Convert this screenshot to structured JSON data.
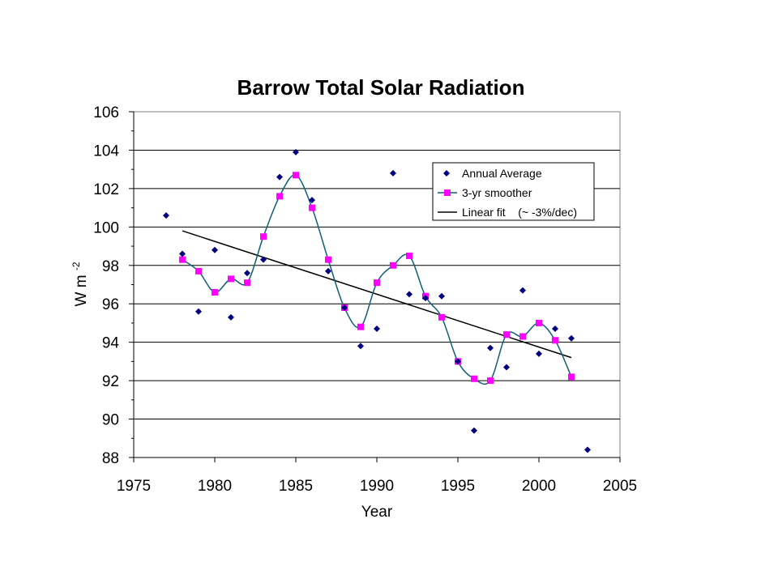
{
  "chart_data": {
    "type": "scatter",
    "title": "Barrow Total Solar Radiation",
    "xlabel": "Year",
    "ylabel": "W m",
    "ylabel_superscript": "-2",
    "xlim": [
      1975,
      2005
    ],
    "ylim": [
      88,
      106
    ],
    "x_ticks": [
      "1975",
      "1980",
      "1985",
      "1990",
      "1995",
      "2000",
      "2005"
    ],
    "y_ticks": [
      "88",
      "90",
      "92",
      "94",
      "96",
      "98",
      "100",
      "102",
      "104",
      "106"
    ],
    "grid": "horizontal",
    "legend_position": "top-right",
    "series": [
      {
        "name": "Annual Average",
        "style": "markers",
        "marker": "diamond",
        "color": "#000080",
        "x": [
          1977,
          1978,
          1979,
          1980,
          1981,
          1982,
          1983,
          1984,
          1985,
          1986,
          1987,
          1988,
          1989,
          1990,
          1991,
          1992,
          1993,
          1994,
          1995,
          1996,
          1997,
          1998,
          1999,
          2000,
          2001,
          2002,
          2003
        ],
        "y": [
          100.6,
          98.6,
          95.6,
          98.8,
          95.3,
          97.6,
          98.3,
          102.6,
          103.9,
          101.4,
          97.7,
          95.8,
          93.8,
          94.7,
          102.8,
          96.5,
          96.3,
          96.4,
          93.0,
          89.4,
          93.7,
          92.7,
          96.7,
          93.4,
          94.7,
          94.2,
          88.4
        ]
      },
      {
        "name": "3-yr smoother",
        "style": "line-markers",
        "marker": "square",
        "color": "#ff00ff",
        "line_color": "#0f5f7a",
        "x": [
          1978,
          1979,
          1980,
          1981,
          1982,
          1983,
          1984,
          1985,
          1986,
          1987,
          1988,
          1989,
          1990,
          1991,
          1992,
          1993,
          1994,
          1995,
          1996,
          1997,
          1998,
          1999,
          2000,
          2001,
          2002
        ],
        "y": [
          98.3,
          97.7,
          96.6,
          97.3,
          97.1,
          99.5,
          101.6,
          102.7,
          101.0,
          98.3,
          95.8,
          94.8,
          97.1,
          98.0,
          98.5,
          96.4,
          95.3,
          93.0,
          92.1,
          92.0,
          94.4,
          94.3,
          95.0,
          94.1,
          92.2
        ]
      },
      {
        "name": "Linear fit    (~ -3%/dec)",
        "style": "line",
        "color": "#000000",
        "x": [
          1978,
          2002
        ],
        "y": [
          99.8,
          93.2
        ]
      }
    ]
  }
}
